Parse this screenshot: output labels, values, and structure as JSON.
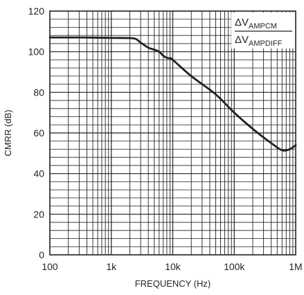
{
  "chart_data": {
    "type": "line",
    "title": "",
    "xlabel": "FREQUENCY (Hz)",
    "ylabel": "CMRR (dB)",
    "x_scale": "log",
    "xlim": [
      100,
      1000000
    ],
    "ylim": [
      0,
      120
    ],
    "x_ticks": [
      100,
      1000,
      10000,
      100000,
      1000000
    ],
    "x_tick_labels": [
      "100",
      "1k",
      "10k",
      "100k",
      "1M"
    ],
    "y_ticks": [
      0,
      20,
      40,
      60,
      80,
      100,
      120
    ],
    "y_tick_labels": [
      "0",
      "20",
      "40",
      "60",
      "80",
      "100",
      "120"
    ],
    "grid": true,
    "annotation": {
      "numerator": "ΔV",
      "numerator_sub": "AMPCM",
      "denominator": "ΔV",
      "denominator_sub": "AMPDIFF"
    },
    "series": [
      {
        "x": [
          100,
          300,
          1000,
          2000,
          2500,
          3000,
          4000,
          5000,
          6000,
          7000,
          8000,
          9000,
          10000,
          20000,
          50000,
          100000,
          200000,
          400000,
          600000,
          800000,
          1000000
        ],
        "values": [
          107,
          107,
          106.8,
          106.7,
          106.3,
          104.5,
          102,
          101,
          100,
          98,
          97,
          96.7,
          96,
          88,
          79,
          70,
          62,
          55,
          51.5,
          52,
          54
        ]
      }
    ],
    "line_color": "#231f20"
  }
}
